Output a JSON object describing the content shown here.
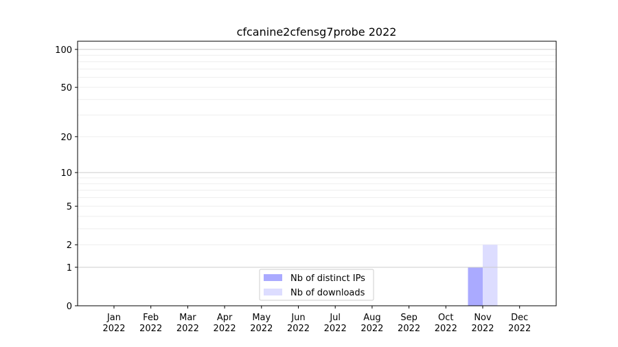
{
  "chart_data": {
    "type": "bar",
    "title": "cfcanine2cfensg7probe 2022",
    "xlabel": "",
    "ylabel": "",
    "y_scale": "log(y+1)",
    "ylim": [
      0,
      116
    ],
    "y_ticks": [
      0,
      1,
      2,
      5,
      10,
      20,
      50,
      100
    ],
    "grid": true,
    "legend_position": "bottom-center",
    "categories": [
      {
        "month": "Jan",
        "year": "2022"
      },
      {
        "month": "Feb",
        "year": "2022"
      },
      {
        "month": "Mar",
        "year": "2022"
      },
      {
        "month": "Apr",
        "year": "2022"
      },
      {
        "month": "May",
        "year": "2022"
      },
      {
        "month": "Jun",
        "year": "2022"
      },
      {
        "month": "Jul",
        "year": "2022"
      },
      {
        "month": "Aug",
        "year": "2022"
      },
      {
        "month": "Sep",
        "year": "2022"
      },
      {
        "month": "Oct",
        "year": "2022"
      },
      {
        "month": "Nov",
        "year": "2022"
      },
      {
        "month": "Dec",
        "year": "2022"
      }
    ],
    "series": [
      {
        "name": "Nb of distinct IPs",
        "color": "#aaaaff",
        "values": [
          0,
          0,
          0,
          0,
          0,
          0,
          0,
          0,
          0,
          0,
          1,
          0
        ]
      },
      {
        "name": "Nb of downloads",
        "color": "#ddddff",
        "values": [
          0,
          0,
          0,
          0,
          0,
          0,
          0,
          0,
          0,
          0,
          2,
          0
        ]
      }
    ]
  }
}
